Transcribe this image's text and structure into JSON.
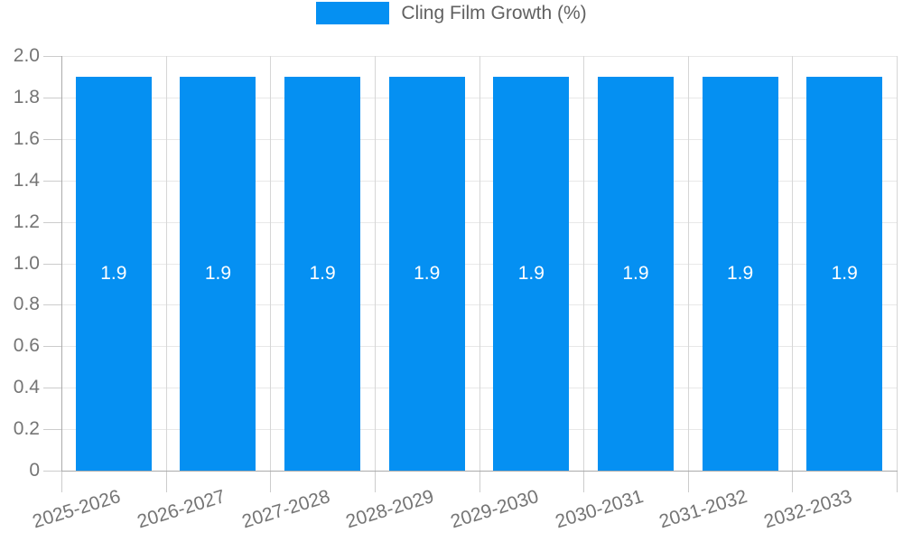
{
  "legend": {
    "label": "Cling Film Growth (%)",
    "position": "top"
  },
  "colors": {
    "bar": "#0590f2",
    "bar_label": "#ffffff",
    "axis_text": "#757575",
    "legend_text": "#616161",
    "grid_h": "#e8e8e8",
    "grid_v": "#d6d6d6",
    "tick": "#cccccc",
    "axis_line": "#ababab",
    "background": "#ffffff"
  },
  "chart_data": {
    "type": "bar",
    "title": "",
    "xlabel": "",
    "ylabel": "",
    "categories": [
      "2025-2026",
      "2026-2027",
      "2027-2028",
      "2028-2029",
      "2029-2030",
      "2030-2031",
      "2031-2032",
      "2032-2033"
    ],
    "series": [
      {
        "name": "Cling Film Growth (%)",
        "values": [
          1.9,
          1.9,
          1.9,
          1.9,
          1.9,
          1.9,
          1.9,
          1.9
        ]
      }
    ],
    "bar_labels": [
      "1.9",
      "1.9",
      "1.9",
      "1.9",
      "1.9",
      "1.9",
      "1.9",
      "1.9"
    ],
    "ylim": [
      0,
      2.0
    ],
    "ytick_step": 0.2,
    "ytick_labels": [
      "0",
      "0.2",
      "0.4",
      "0.6",
      "0.8",
      "1.0",
      "1.2",
      "1.4",
      "1.6",
      "1.8",
      "2.0"
    ],
    "grid": true,
    "legend_position": "top"
  }
}
